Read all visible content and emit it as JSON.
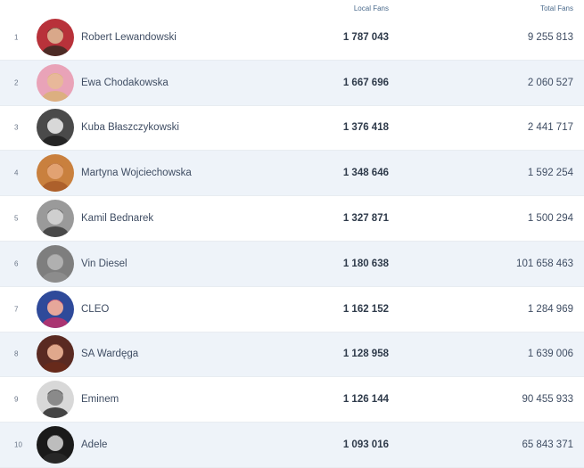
{
  "header": {
    "local_fans": "Local Fans",
    "total_fans": "Total Fans"
  },
  "rows": [
    {
      "rank": "1",
      "name": "Robert Lewandowski",
      "local": "1 787 043",
      "total": "9 255 813",
      "bg": "#b8323a",
      "skin": "#d9a88a",
      "hair": "#3a2a22"
    },
    {
      "rank": "2",
      "name": "Ewa Chodakowska",
      "local": "1 667 696",
      "total": "2 060 527",
      "bg": "#e9a3b8",
      "skin": "#e8b89a",
      "hair": "#d9b276"
    },
    {
      "rank": "3",
      "name": "Kuba Błaszczykowski",
      "local": "1 376 418",
      "total": "2 441 717",
      "bg": "#4a4a4a",
      "skin": "#d8d8d8",
      "hair": "#1e1e1e"
    },
    {
      "rank": "4",
      "name": "Martyna Wojciechowska",
      "local": "1 348 646",
      "total": "1 592 254",
      "bg": "#c9803e",
      "skin": "#e2a272",
      "hair": "#a85a28"
    },
    {
      "rank": "5",
      "name": "Kamil Bednarek",
      "local": "1 327 871",
      "total": "1 500 294",
      "bg": "#9a9a9a",
      "skin": "#cfcfcf",
      "hair": "#3b3b3b"
    },
    {
      "rank": "6",
      "name": "Vin Diesel",
      "local": "1 180 638",
      "total": "101 658 463",
      "bg": "#7e7e7e",
      "skin": "#b0b0b0",
      "hair": "#8e8e8e"
    },
    {
      "rank": "7",
      "name": "CLEO",
      "local": "1 162 152",
      "total": "1 284 969",
      "bg": "#2f4a9a",
      "skin": "#e6a79a",
      "hair": "#c0306a"
    },
    {
      "rank": "8",
      "name": "SA Wardęga",
      "local": "1 128 958",
      "total": "1 639 006",
      "bg": "#5a2a22",
      "skin": "#e0a88c",
      "hair": "#6a2a1a"
    },
    {
      "rank": "9",
      "name": "Eminem",
      "local": "1 126 144",
      "total": "90 455 933",
      "bg": "#d8d8d8",
      "skin": "#8a8a8a",
      "hair": "#2a2a2a"
    },
    {
      "rank": "10",
      "name": "Adele",
      "local": "1 093 016",
      "total": "65 843 371",
      "bg": "#1a1a1a",
      "skin": "#bdbdbd",
      "hair": "#2a2a2a"
    }
  ]
}
